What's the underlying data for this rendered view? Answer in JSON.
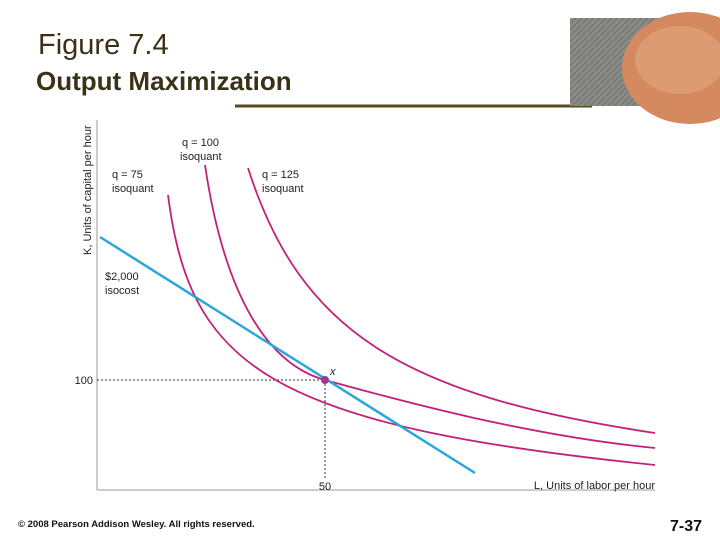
{
  "header": {
    "title": "Figure 7.4",
    "subtitle": "Output Maximization"
  },
  "diagram": {
    "y_axis_label": "K, Units of capital per hour",
    "x_axis_label": "L, Units of labor per hour",
    "y_tick": "100",
    "x_tick": "50",
    "point_label": "x",
    "isocost": {
      "line1": "$2,000",
      "line2": "isocost"
    },
    "isoquants": [
      {
        "line1": "q = 75",
        "line2": "isoquant"
      },
      {
        "line1": "q = 100",
        "line2": "isoquant"
      },
      {
        "line1": "q = 125",
        "line2": "isoquant"
      }
    ]
  },
  "footer": {
    "copyright": "© 2008 Pearson Addison Wesley. All rights reserved.",
    "page": "7-37"
  }
}
